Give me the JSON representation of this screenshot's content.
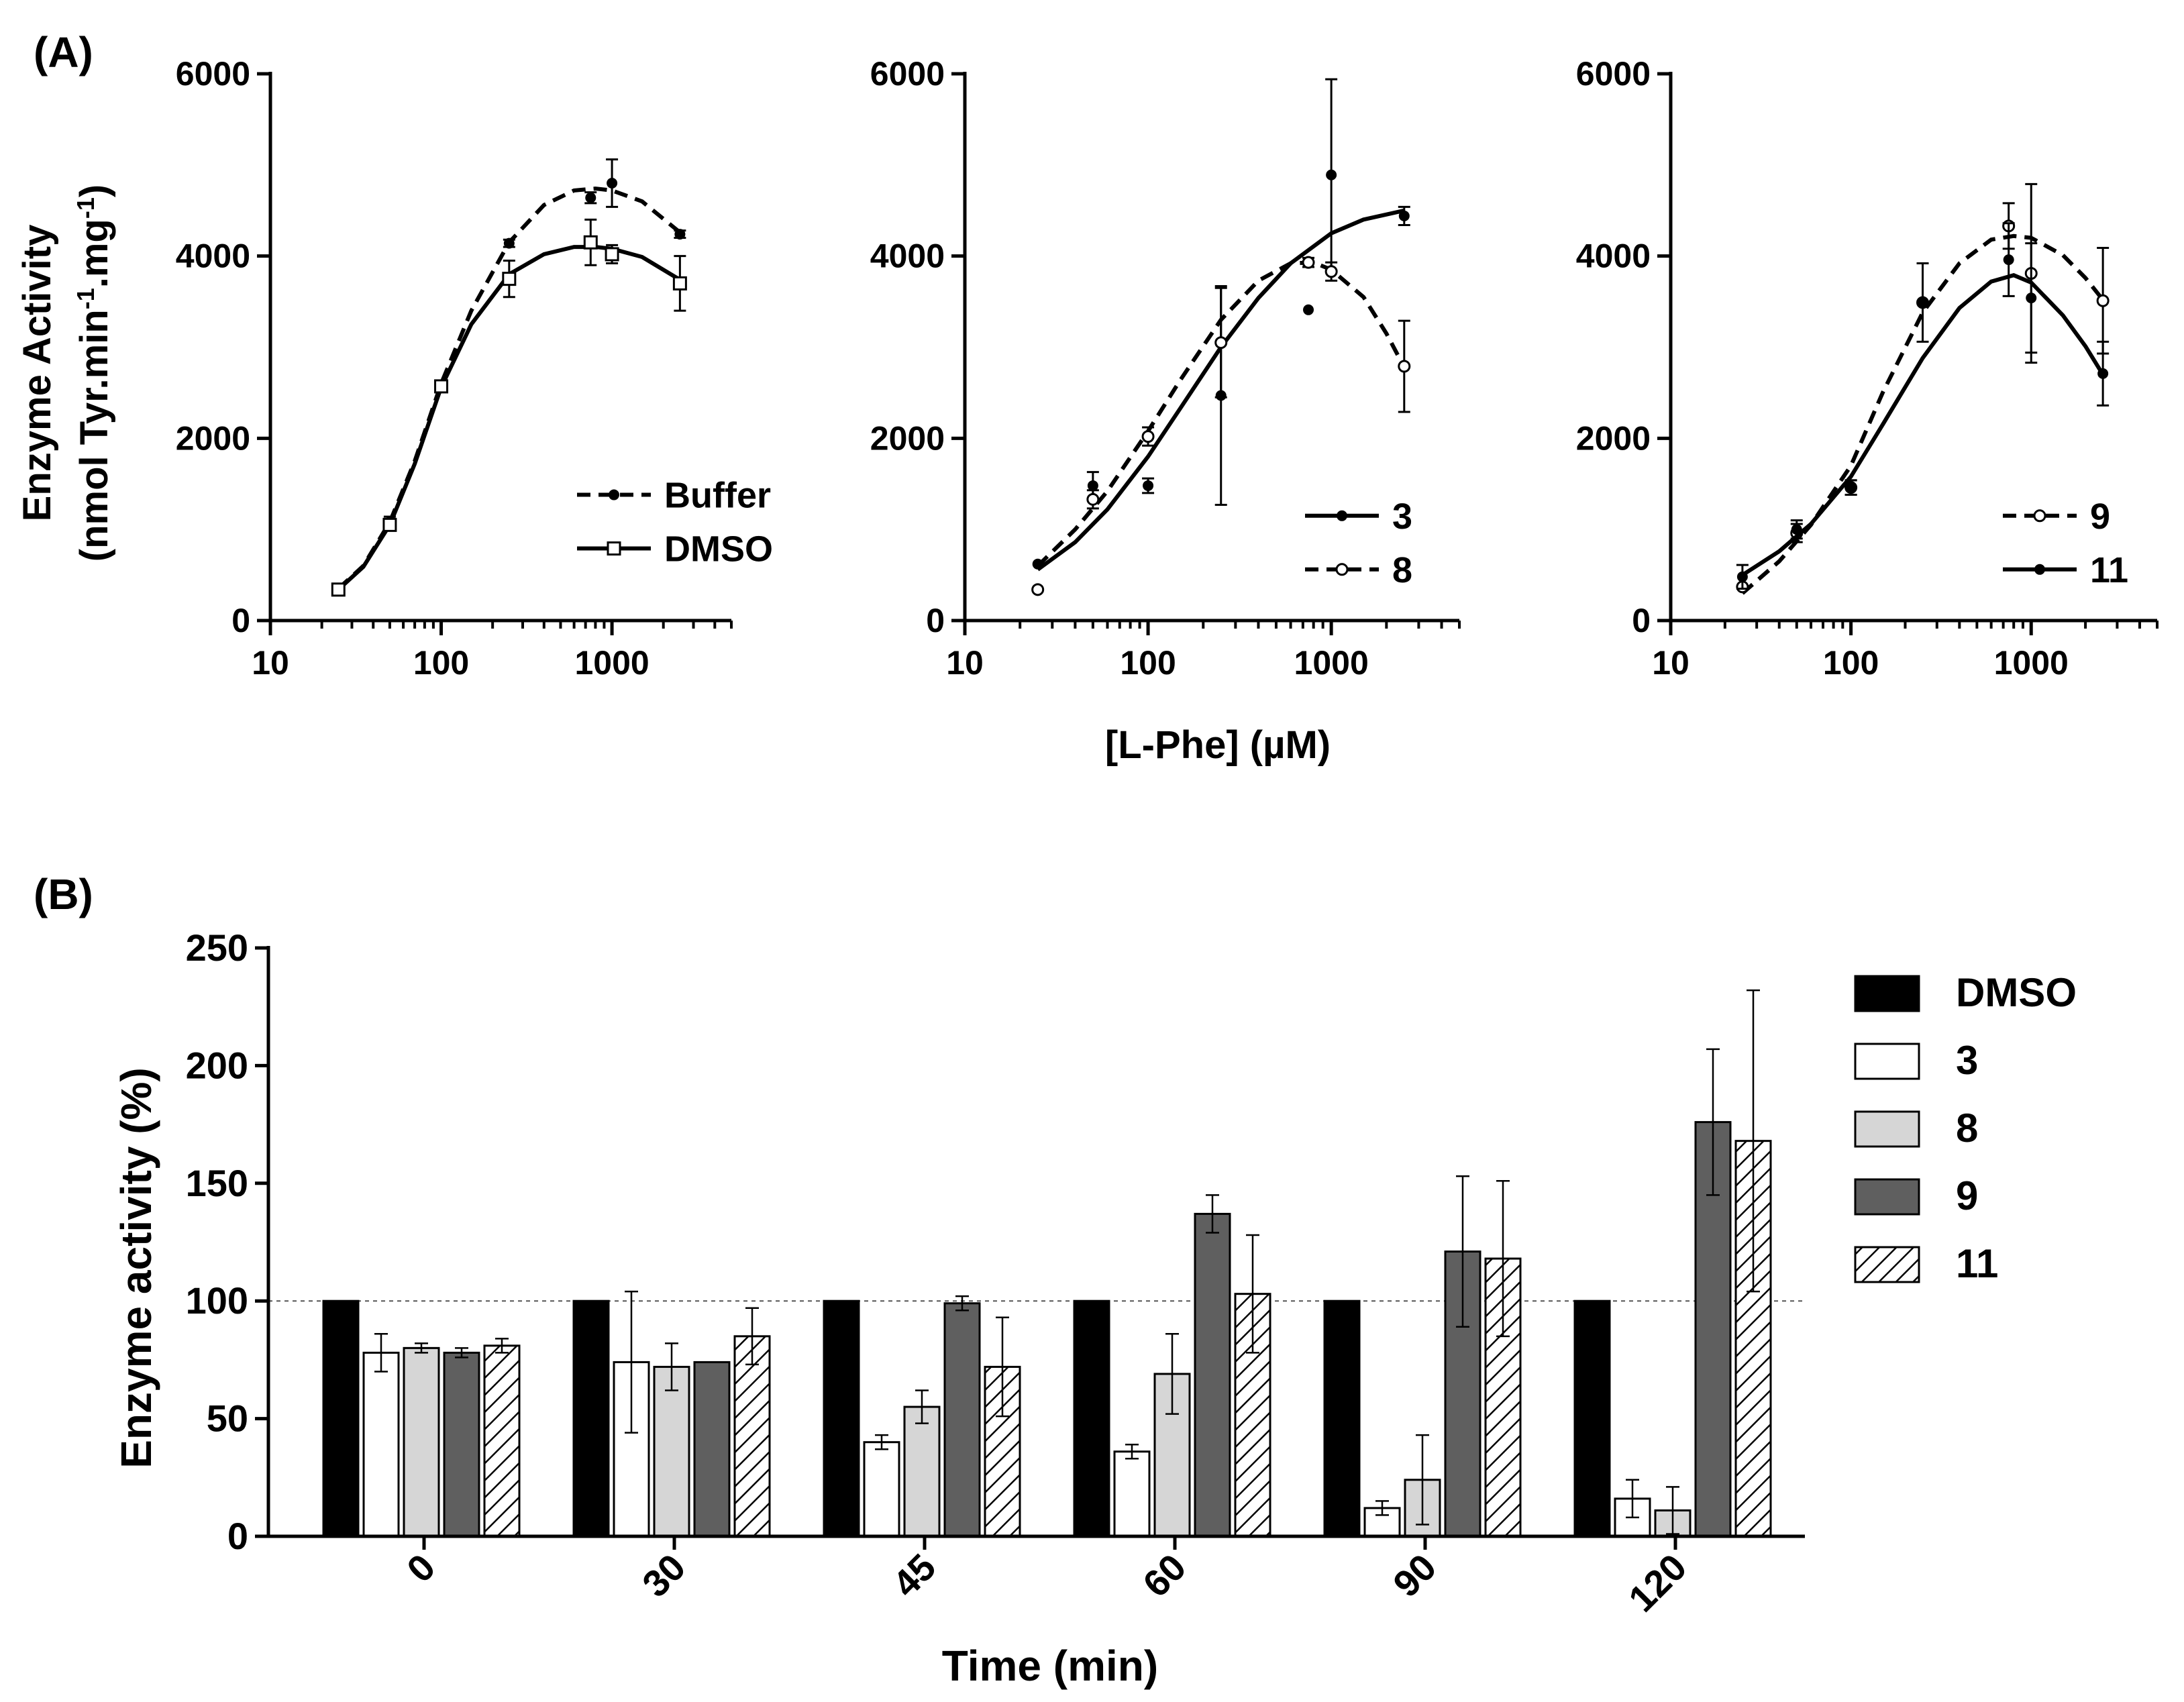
{
  "panel_labels": {
    "a": "(A)",
    "b": "(B)"
  },
  "chart_data": [
    {
      "type": "line",
      "panel": "A1",
      "x_scale": "log",
      "xlim": [
        10,
        5000
      ],
      "ylim": [
        0,
        6000
      ],
      "x_ticks": [
        10,
        100,
        1000
      ],
      "y_ticks": [
        0,
        2000,
        4000,
        6000
      ],
      "ylabel_line1": "Enzyme Activity",
      "ylabel_line2": "(nmol Tyr.min-1.mg-1)",
      "legend_position": "lower-right",
      "series": [
        {
          "name": "Buffer",
          "style": "dashed",
          "marker": "filled-circle",
          "points": [
            [
              25,
              350
            ],
            [
              50,
              1080
            ],
            [
              100,
              2570
            ],
            [
              250,
              4140
            ],
            [
              750,
              4640
            ],
            [
              1000,
              4800
            ],
            [
              2500,
              4240
            ]
          ],
          "errors": [
            0,
            60,
            60,
            40,
            60,
            260,
            40
          ],
          "fit": [
            [
              25,
              350
            ],
            [
              35,
              600
            ],
            [
              50,
              1080
            ],
            [
              70,
              1750
            ],
            [
              100,
              2600
            ],
            [
              150,
              3400
            ],
            [
              250,
              4150
            ],
            [
              400,
              4560
            ],
            [
              600,
              4720
            ],
            [
              800,
              4740
            ],
            [
              1000,
              4720
            ],
            [
              1500,
              4600
            ],
            [
              2500,
              4260
            ]
          ]
        },
        {
          "name": "DMSO",
          "style": "solid",
          "marker": "open-square",
          "points": [
            [
              25,
              340
            ],
            [
              50,
              1050
            ],
            [
              100,
              2570
            ],
            [
              250,
              3750
            ],
            [
              750,
              4150
            ],
            [
              1000,
              4020
            ],
            [
              2500,
              3700
            ]
          ],
          "errors": [
            0,
            60,
            60,
            200,
            250,
            100,
            300
          ],
          "fit": [
            [
              25,
              340
            ],
            [
              35,
              590
            ],
            [
              50,
              1050
            ],
            [
              70,
              1720
            ],
            [
              100,
              2560
            ],
            [
              150,
              3250
            ],
            [
              250,
              3800
            ],
            [
              400,
              4020
            ],
            [
              600,
              4100
            ],
            [
              800,
              4100
            ],
            [
              1000,
              4080
            ],
            [
              1500,
              3990
            ],
            [
              2500,
              3740
            ]
          ]
        }
      ]
    },
    {
      "type": "line",
      "panel": "A2",
      "x_scale": "log",
      "xlim": [
        10,
        5000
      ],
      "ylim": [
        0,
        6000
      ],
      "x_ticks": [
        10,
        100,
        1000
      ],
      "y_ticks": [
        0,
        2000,
        4000,
        6000
      ],
      "xlabel": "[L-Phe] (µM)",
      "legend_position": "lower-right",
      "series": [
        {
          "name": "3",
          "style": "solid",
          "marker": "filled-circle",
          "points": [
            [
              25,
              620
            ],
            [
              50,
              1480
            ],
            [
              100,
              1480
            ],
            [
              250,
              2470
            ],
            [
              750,
              3410
            ],
            [
              1000,
              4890
            ],
            [
              2500,
              4440
            ]
          ],
          "errors": [
            0,
            150,
            80,
            1200,
            0,
            1050,
            100
          ],
          "fit": [
            [
              25,
              560
            ],
            [
              40,
              860
            ],
            [
              60,
              1220
            ],
            [
              100,
              1800
            ],
            [
              150,
              2330
            ],
            [
              250,
              3000
            ],
            [
              400,
              3540
            ],
            [
              600,
              3920
            ],
            [
              1000,
              4250
            ],
            [
              1500,
              4400
            ],
            [
              2500,
              4500
            ]
          ]
        },
        {
          "name": "8",
          "style": "dashed",
          "marker": "open-circle",
          "points": [
            [
              25,
              340
            ],
            [
              50,
              1330
            ],
            [
              100,
              2020
            ],
            [
              250,
              3050
            ],
            [
              750,
              3930
            ],
            [
              1000,
              3830
            ],
            [
              2500,
              2790
            ]
          ],
          "errors": [
            0,
            100,
            100,
            600,
            50,
            100,
            500
          ],
          "fit": [
            [
              25,
              600
            ],
            [
              40,
              1000
            ],
            [
              60,
              1420
            ],
            [
              100,
              2080
            ],
            [
              150,
              2640
            ],
            [
              250,
              3300
            ],
            [
              400,
              3730
            ],
            [
              600,
              3920
            ],
            [
              800,
              3930
            ],
            [
              1000,
              3850
            ],
            [
              1500,
              3550
            ],
            [
              2000,
              3150
            ],
            [
              2500,
              2780
            ]
          ]
        }
      ]
    },
    {
      "type": "line",
      "panel": "A3",
      "x_scale": "log",
      "xlim": [
        10,
        5000
      ],
      "ylim": [
        0,
        6000
      ],
      "x_ticks": [
        10,
        100,
        1000
      ],
      "y_ticks": [
        0,
        2000,
        4000,
        6000
      ],
      "legend_position": "lower-right",
      "series": [
        {
          "name": "9",
          "style": "dashed",
          "marker": "open-circle",
          "points": [
            [
              25,
              370
            ],
            [
              50,
              960
            ],
            [
              100,
              1460
            ],
            [
              250,
              3490
            ],
            [
              750,
              4330
            ],
            [
              1000,
              3810
            ],
            [
              2500,
              3510
            ]
          ],
          "errors": [
            0,
            100,
            80,
            430,
            250,
            980,
            580
          ],
          "fit": [
            [
              25,
              300
            ],
            [
              40,
              650
            ],
            [
              60,
              1050
            ],
            [
              100,
              1700
            ],
            [
              150,
              2500
            ],
            [
              250,
              3380
            ],
            [
              400,
              3920
            ],
            [
              600,
              4180
            ],
            [
              800,
              4220
            ],
            [
              1000,
              4200
            ],
            [
              1500,
              4010
            ],
            [
              2000,
              3760
            ],
            [
              2500,
              3520
            ]
          ]
        },
        {
          "name": "11",
          "style": "solid",
          "marker": "filled-circle",
          "points": [
            [
              25,
              480
            ],
            [
              50,
              1000
            ],
            [
              100,
              1460
            ],
            [
              250,
              3490
            ],
            [
              750,
              3960
            ],
            [
              1000,
              3540
            ],
            [
              2500,
              2710
            ]
          ],
          "errors": [
            130,
            100,
            80,
            0,
            400,
            600,
            350
          ],
          "fit": [
            [
              25,
              500
            ],
            [
              40,
              760
            ],
            [
              60,
              1060
            ],
            [
              100,
              1580
            ],
            [
              150,
              2150
            ],
            [
              250,
              2880
            ],
            [
              400,
              3430
            ],
            [
              600,
              3720
            ],
            [
              800,
              3790
            ],
            [
              1000,
              3710
            ],
            [
              1500,
              3350
            ],
            [
              2000,
              3010
            ],
            [
              2500,
              2700
            ]
          ]
        }
      ]
    },
    {
      "type": "bar",
      "panel": "B",
      "categories": [
        "0",
        "30",
        "45",
        "60",
        "90",
        "120"
      ],
      "xlabel": "Time (min)",
      "ylabel": "Enzyme activity (%)",
      "ylim": [
        0,
        250
      ],
      "y_ticks": [
        0,
        50,
        100,
        150,
        200,
        250
      ],
      "reference_line": 100,
      "legend_position": "top-right",
      "series": [
        {
          "name": "DMSO",
          "fill": "black",
          "values": [
            100,
            100,
            100,
            100,
            100,
            100
          ],
          "errors": [
            0,
            0,
            0,
            0,
            0,
            0
          ]
        },
        {
          "name": "3",
          "fill": "white",
          "values": [
            78,
            74,
            40,
            36,
            12,
            16
          ],
          "errors": [
            8,
            30,
            3,
            3,
            3,
            8
          ]
        },
        {
          "name": "8",
          "fill": "light-gray",
          "values": [
            80,
            72,
            55,
            69,
            24,
            11
          ],
          "errors": [
            2,
            10,
            7,
            17,
            19,
            10
          ]
        },
        {
          "name": "9",
          "fill": "dark-gray",
          "values": [
            78,
            74,
            99,
            137,
            121,
            176
          ],
          "errors": [
            2,
            0,
            3,
            8,
            32,
            31
          ]
        },
        {
          "name": "11",
          "fill": "hatched",
          "values": [
            81,
            85,
            72,
            103,
            118,
            168
          ],
          "errors": [
            3,
            12,
            21,
            25,
            33,
            64
          ]
        }
      ]
    }
  ],
  "colors": {
    "black": "#000000",
    "white": "#ffffff",
    "light_gray": "#d6d6d6",
    "dark_gray": "#5f5f5f"
  }
}
